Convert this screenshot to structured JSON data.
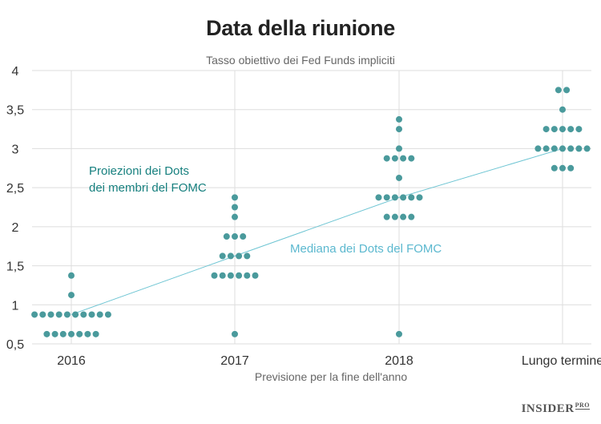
{
  "chart_data": {
    "type": "scatter",
    "title": "Data della riunione",
    "subtitle": "Tasso obiettivo dei Fed Funds impliciti",
    "xlabel": "Previsione per la fine dell'anno",
    "ylabel": "",
    "categories": [
      "2016",
      "2017",
      "2018",
      "Lungo termine"
    ],
    "ylim": [
      0.5,
      4
    ],
    "yticks": [
      0.5,
      1,
      1.5,
      2,
      2.5,
      3,
      3.5,
      4
    ],
    "ytick_labels": [
      "0,5",
      "1",
      "1,5",
      "2",
      "2,5",
      "3",
      "3,5",
      "4"
    ],
    "grid": true,
    "dots": [
      {
        "category": "2016",
        "value": 1.375,
        "count": 1
      },
      {
        "category": "2016",
        "value": 1.125,
        "count": 1
      },
      {
        "category": "2016",
        "value": 0.875,
        "count": 10
      },
      {
        "category": "2016",
        "value": 0.625,
        "count": 7
      },
      {
        "category": "2017",
        "value": 2.375,
        "count": 1
      },
      {
        "category": "2017",
        "value": 2.25,
        "count": 1
      },
      {
        "category": "2017",
        "value": 2.125,
        "count": 1
      },
      {
        "category": "2017",
        "value": 1.875,
        "count": 3
      },
      {
        "category": "2017",
        "value": 1.625,
        "count": 4
      },
      {
        "category": "2017",
        "value": 1.375,
        "count": 6
      },
      {
        "category": "2017",
        "value": 0.625,
        "count": 1
      },
      {
        "category": "2018",
        "value": 3.375,
        "count": 1
      },
      {
        "category": "2018",
        "value": 3.25,
        "count": 1
      },
      {
        "category": "2018",
        "value": 3.0,
        "count": 1
      },
      {
        "category": "2018",
        "value": 2.875,
        "count": 4
      },
      {
        "category": "2018",
        "value": 2.625,
        "count": 1
      },
      {
        "category": "2018",
        "value": 2.375,
        "count": 6
      },
      {
        "category": "2018",
        "value": 2.125,
        "count": 4
      },
      {
        "category": "2018",
        "value": 0.625,
        "count": 1
      },
      {
        "category": "Lungo termine",
        "value": 3.75,
        "count": 2
      },
      {
        "category": "Lungo termine",
        "value": 3.5,
        "count": 1
      },
      {
        "category": "Lungo termine",
        "value": 3.25,
        "count": 5
      },
      {
        "category": "Lungo termine",
        "value": 3.0,
        "count": 7
      },
      {
        "category": "Lungo termine",
        "value": 2.75,
        "count": 3
      }
    ],
    "median": {
      "categories": [
        "2016",
        "2017",
        "2018",
        "Lungo termine"
      ],
      "values": [
        0.875,
        1.625,
        2.375,
        3.0
      ]
    },
    "annotations": {
      "dots_label": [
        "Proiezioni dei Dots",
        "dei membri del FOMC"
      ],
      "median_label": "Mediana dei Dots del FOMC"
    },
    "colors": {
      "dots": "#4a9a9c",
      "median": "#6ec5d3",
      "dots_label": "#17807f",
      "median_label": "#5bb8cf",
      "grid": "#dddddd"
    }
  },
  "brand": {
    "name": "INSIDER",
    "suffix": "PRO"
  }
}
